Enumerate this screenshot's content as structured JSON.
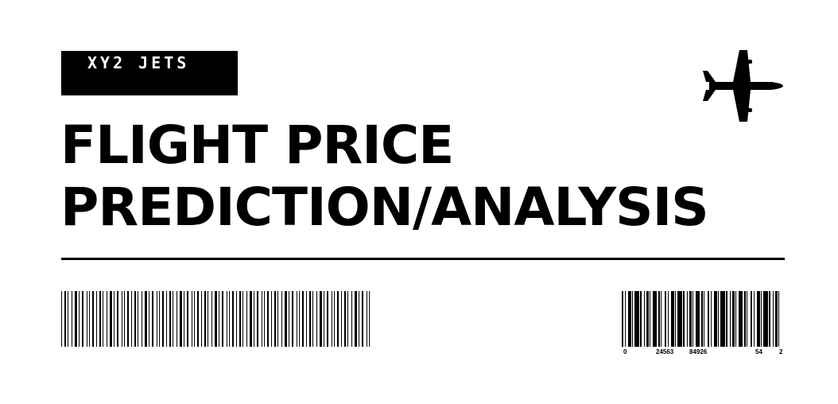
{
  "brand": {
    "name": "XY2 JETS"
  },
  "title": {
    "line1": "FLIGHT PRICE",
    "line2": "PREDICTION/ANALYSIS"
  },
  "icons": {
    "plane": "airplane-icon"
  },
  "barcode_right": {
    "digits": [
      "0",
      "24563",
      "84926",
      "54",
      "2"
    ]
  },
  "colors": {
    "ink": "#000000",
    "background": "#ffffff"
  }
}
